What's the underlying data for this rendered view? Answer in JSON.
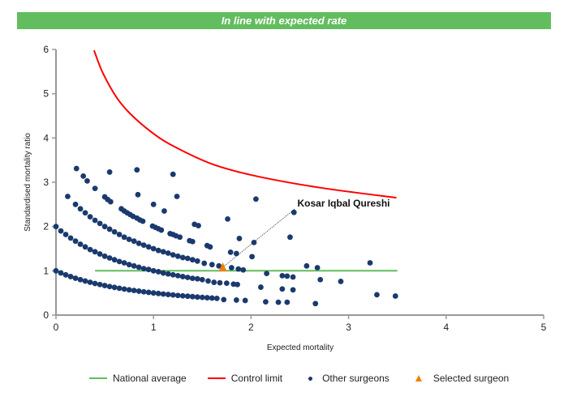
{
  "banner": {
    "text": "In line with expected rate",
    "color": "#62bd5e"
  },
  "chart_data": {
    "type": "scatter",
    "xlabel": "Expected mortality",
    "ylabel": "Standardised mortality ratio",
    "xlim": [
      0,
      5
    ],
    "ylim": [
      0,
      6
    ],
    "xticks": [
      "0",
      "1",
      "2",
      "3",
      "4",
      "5"
    ],
    "yticks": [
      "0",
      "1",
      "2",
      "3",
      "4",
      "5",
      "6"
    ],
    "grid": false,
    "legend_position": "bottom",
    "annotation": {
      "text": "Kosar Iqbal Qureshi",
      "x": 2.45,
      "y": 2.4
    },
    "series": [
      {
        "name": "National average",
        "kind": "line",
        "color": "#62bd5e",
        "points": [
          [
            0.4,
            1
          ],
          [
            3.5,
            1
          ]
        ]
      },
      {
        "name": "Control limit",
        "kind": "line",
        "color": "#ff0000",
        "points": [
          [
            0.39,
            5.98
          ],
          [
            0.48,
            5.47
          ],
          [
            0.62,
            4.92
          ],
          [
            0.76,
            4.55
          ],
          [
            0.98,
            4.13
          ],
          [
            1.2,
            3.82
          ],
          [
            1.59,
            3.42
          ],
          [
            2.03,
            3.15
          ],
          [
            2.7,
            2.88
          ],
          [
            3.49,
            2.65
          ]
        ]
      },
      {
        "name": "Other surgeons",
        "kind": "scatter",
        "color": "#1a3a6e",
        "points": [
          [
            0,
            1.0
          ],
          [
            0.05,
            0.952
          ],
          [
            0.1,
            0.909
          ],
          [
            0.15,
            0.87
          ],
          [
            0.2,
            0.833
          ],
          [
            0.25,
            0.8
          ],
          [
            0.3,
            0.769
          ],
          [
            0.35,
            0.741
          ],
          [
            0.4,
            0.714
          ],
          [
            0.45,
            0.69
          ],
          [
            0.5,
            0.667
          ],
          [
            0.55,
            0.645
          ],
          [
            0.6,
            0.625
          ],
          [
            0.65,
            0.606
          ],
          [
            0.7,
            0.588
          ],
          [
            0.75,
            0.571
          ],
          [
            0.8,
            0.556
          ],
          [
            0.85,
            0.541
          ],
          [
            0.9,
            0.526
          ],
          [
            0.95,
            0.513
          ],
          [
            1.0,
            0.5
          ],
          [
            1.05,
            0.488
          ],
          [
            1.1,
            0.476
          ],
          [
            1.15,
            0.465
          ],
          [
            1.2,
            0.455
          ],
          [
            1.25,
            0.444
          ],
          [
            1.3,
            0.435
          ],
          [
            1.35,
            0.426
          ],
          [
            1.4,
            0.417
          ],
          [
            1.45,
            0.408
          ],
          [
            1.5,
            0.4
          ],
          [
            1.55,
            0.392
          ],
          [
            1.6,
            0.385
          ],
          [
            1.65,
            0.377
          ],
          [
            1.72,
            0.35
          ],
          [
            0,
            2.0
          ],
          [
            0.05,
            1.9
          ],
          [
            0.1,
            1.82
          ],
          [
            0.15,
            1.74
          ],
          [
            0.2,
            1.67
          ],
          [
            0.25,
            1.6
          ],
          [
            0.3,
            1.54
          ],
          [
            0.35,
            1.48
          ],
          [
            0.4,
            1.43
          ],
          [
            0.45,
            1.38
          ],
          [
            0.5,
            1.33
          ],
          [
            0.55,
            1.29
          ],
          [
            0.6,
            1.25
          ],
          [
            0.65,
            1.21
          ],
          [
            0.7,
            1.18
          ],
          [
            0.75,
            1.14
          ],
          [
            0.8,
            1.11
          ],
          [
            0.85,
            1.08
          ],
          [
            0.9,
            1.05
          ],
          [
            0.95,
            1.03
          ],
          [
            1.0,
            1.0
          ],
          [
            1.05,
            0.98
          ],
          [
            1.1,
            0.95
          ],
          [
            1.15,
            0.93
          ],
          [
            1.2,
            0.91
          ],
          [
            1.25,
            0.89
          ],
          [
            1.3,
            0.87
          ],
          [
            1.35,
            0.85
          ],
          [
            1.4,
            0.83
          ],
          [
            1.45,
            0.82
          ],
          [
            1.5,
            0.8
          ],
          [
            1.56,
            0.77
          ],
          [
            1.62,
            0.74
          ],
          [
            1.68,
            0.73
          ],
          [
            1.75,
            0.72
          ],
          [
            0.12,
            2.68
          ],
          [
            0.2,
            2.5
          ],
          [
            0.25,
            2.4
          ],
          [
            0.3,
            2.31
          ],
          [
            0.35,
            2.22
          ],
          [
            0.4,
            2.14
          ],
          [
            0.45,
            2.07
          ],
          [
            0.5,
            2.0
          ],
          [
            0.55,
            1.94
          ],
          [
            0.6,
            1.88
          ],
          [
            0.65,
            1.82
          ],
          [
            0.7,
            1.76
          ],
          [
            0.75,
            1.71
          ],
          [
            0.8,
            1.67
          ],
          [
            0.85,
            1.62
          ],
          [
            0.9,
            1.58
          ],
          [
            0.95,
            1.54
          ],
          [
            1.0,
            1.5
          ],
          [
            1.05,
            1.46
          ],
          [
            1.1,
            1.43
          ],
          [
            1.15,
            1.4
          ],
          [
            1.2,
            1.36
          ],
          [
            1.25,
            1.33
          ],
          [
            1.3,
            1.3
          ],
          [
            1.35,
            1.28
          ],
          [
            1.4,
            1.25
          ],
          [
            1.45,
            1.22
          ],
          [
            1.52,
            1.17
          ],
          [
            1.6,
            1.14
          ],
          [
            1.67,
            1.11
          ],
          [
            0.21,
            3.31
          ],
          [
            0.28,
            3.14
          ],
          [
            0.32,
            3.03
          ],
          [
            0.4,
            2.86
          ],
          [
            0.5,
            2.67
          ],
          [
            0.53,
            2.61
          ],
          [
            0.56,
            2.56
          ],
          [
            0.67,
            2.4
          ],
          [
            0.7,
            2.35
          ],
          [
            0.73,
            2.31
          ],
          [
            0.76,
            2.27
          ],
          [
            0.79,
            2.23
          ],
          [
            0.83,
            2.19
          ],
          [
            0.86,
            2.15
          ],
          [
            0.89,
            2.12
          ],
          [
            0.99,
            2.01
          ],
          [
            1.02,
            1.98
          ],
          [
            1.05,
            1.95
          ],
          [
            1.08,
            1.92
          ],
          [
            1.17,
            1.84
          ],
          [
            1.2,
            1.82
          ],
          [
            1.23,
            1.79
          ],
          [
            1.27,
            1.76
          ],
          [
            0.55,
            3.23
          ],
          [
            0.83,
            3.28
          ],
          [
            1.2,
            3.18
          ],
          [
            0.84,
            2.72
          ],
          [
            1.24,
            2.68
          ],
          [
            1.0,
            2.5
          ],
          [
            1.11,
            2.35
          ],
          [
            1.42,
            2.05
          ],
          [
            1.46,
            2.02
          ],
          [
            1.37,
            1.68
          ],
          [
            1.4,
            1.66
          ],
          [
            1.55,
            1.57
          ],
          [
            1.58,
            1.54
          ],
          [
            2.05,
            2.62
          ],
          [
            1.76,
            2.17
          ],
          [
            2.44,
            2.32
          ],
          [
            1.88,
            1.73
          ],
          [
            2.4,
            1.76
          ],
          [
            2.03,
            1.64
          ],
          [
            1.79,
            1.42
          ],
          [
            1.85,
            1.39
          ],
          [
            2.01,
            1.32
          ],
          [
            3.22,
            1.18
          ],
          [
            2.57,
            1.11
          ],
          [
            2.68,
            1.07
          ],
          [
            1.8,
            1.07
          ],
          [
            1.87,
            1.04
          ],
          [
            1.92,
            1.02
          ],
          [
            2.16,
            0.94
          ],
          [
            2.32,
            0.89
          ],
          [
            2.37,
            0.88
          ],
          [
            2.43,
            0.86
          ],
          [
            2.71,
            0.8
          ],
          [
            2.92,
            0.76
          ],
          [
            1.82,
            0.7
          ],
          [
            1.86,
            0.69
          ],
          [
            2.1,
            0.63
          ],
          [
            2.32,
            0.59
          ],
          [
            2.43,
            0.57
          ],
          [
            3.29,
            0.46
          ],
          [
            3.48,
            0.43
          ],
          [
            1.85,
            0.34
          ],
          [
            1.94,
            0.33
          ],
          [
            2.15,
            0.3
          ],
          [
            2.28,
            0.29
          ],
          [
            2.37,
            0.29
          ],
          [
            2.66,
            0.26
          ]
        ]
      },
      {
        "name": "Selected surgeon",
        "kind": "scatter",
        "marker": "triangle",
        "color": "#f07f09",
        "points": [
          [
            1.71,
            1.08
          ]
        ]
      }
    ]
  }
}
